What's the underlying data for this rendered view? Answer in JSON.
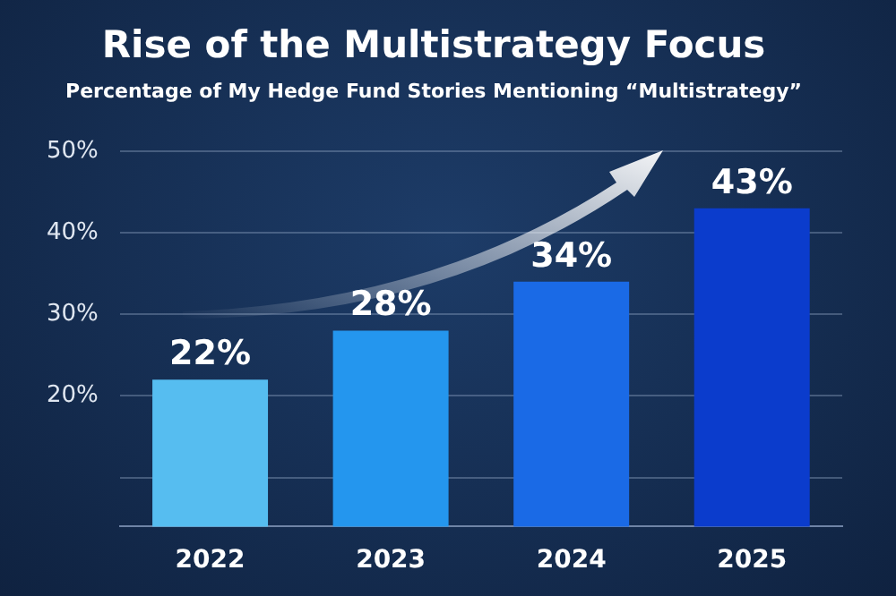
{
  "chart_data": {
    "type": "bar",
    "title": "Rise of the Multistrategy Focus",
    "subtitle": "Percentage of My Hedge Fund Stories Mentioning “Multistrategy”",
    "categories": [
      "2022",
      "2023",
      "2024",
      "2025"
    ],
    "values": [
      22,
      28,
      34,
      43
    ],
    "colors": [
      "#56bdf0",
      "#2496ee",
      "#1a6ae6",
      "#0b3ccc"
    ],
    "value_labels": [
      "22%",
      "28%",
      "34%",
      "43%"
    ],
    "ylim": [
      4,
      50
    ],
    "yticks": [
      {
        "value": 10,
        "label": null
      },
      {
        "value": 20,
        "label": "20%"
      },
      {
        "value": 30,
        "label": "30%"
      },
      {
        "value": 40,
        "label": "40%"
      },
      {
        "value": 50,
        "label": "50%"
      }
    ],
    "grid": "y"
  }
}
